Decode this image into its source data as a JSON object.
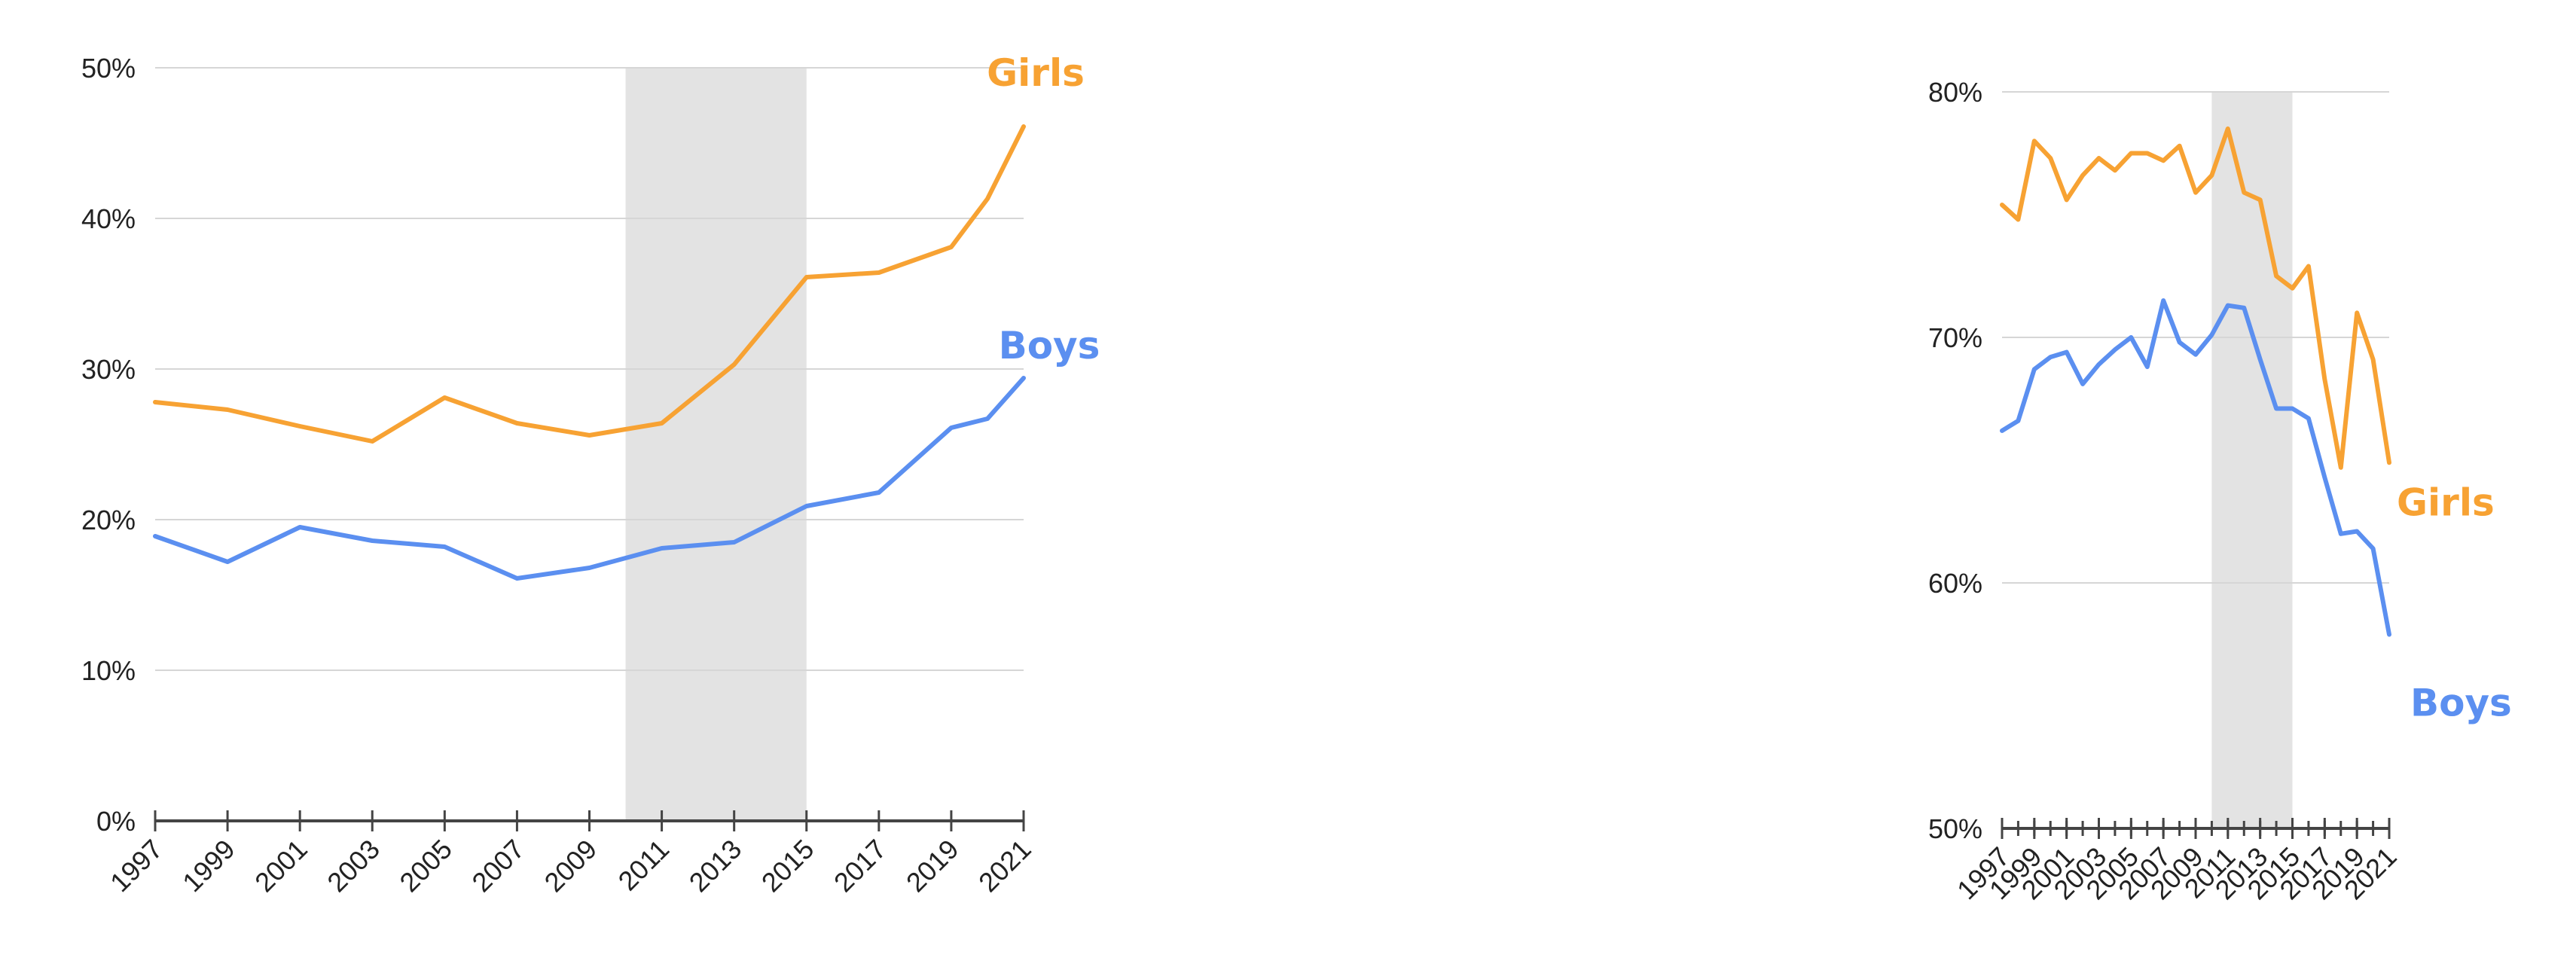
{
  "colors": {
    "girls": "#F7A233",
    "boys": "#5B8FF0",
    "shade": "#E3E3E3",
    "grid": "#D6D6D6",
    "axis": "#444444",
    "text": "#222222"
  },
  "chart_data": [
    {
      "type": "line",
      "title": "",
      "xlabel": "",
      "ylabel": "",
      "ylim": [
        0,
        50
      ],
      "yticks": [
        0,
        10,
        20,
        30,
        40,
        50
      ],
      "ytick_labels": [
        "0%",
        "10%",
        "20%",
        "30%",
        "40%",
        "50%"
      ],
      "xticks": [
        1997,
        1999,
        2001,
        2003,
        2005,
        2007,
        2009,
        2011,
        2013,
        2015,
        2017,
        2019,
        2021
      ],
      "xtick_labels": [
        "1997",
        "1999",
        "2001",
        "2003",
        "2005",
        "2007",
        "2009",
        "2011",
        "2013",
        "2015",
        "2017",
        "2019",
        "2021"
      ],
      "xlim": [
        1997,
        2021
      ],
      "grid": true,
      "shaded_region": [
        2010,
        2015
      ],
      "series": [
        {
          "name": "Girls",
          "color_key": "girls",
          "x": [
            1997,
            1999,
            2001,
            2003,
            2005,
            2007,
            2009,
            2011,
            2013,
            2015,
            2017,
            2019,
            2020,
            2021
          ],
          "y": [
            27.8,
            27.3,
            26.2,
            25.2,
            28.1,
            26.4,
            25.6,
            26.4,
            30.3,
            36.1,
            36.4,
            38.1,
            41.3,
            46.1
          ]
        },
        {
          "name": "Boys",
          "color_key": "boys",
          "x": [
            1997,
            1999,
            2001,
            2003,
            2005,
            2007,
            2009,
            2011,
            2013,
            2015,
            2017,
            2019,
            2020,
            2021
          ],
          "y": [
            18.9,
            17.2,
            19.5,
            18.6,
            18.2,
            16.1,
            16.8,
            18.1,
            18.5,
            20.9,
            21.8,
            26.1,
            26.7,
            29.4
          ]
        }
      ]
    },
    {
      "type": "line",
      "title": "",
      "xlabel": "",
      "ylabel": "",
      "ylim": [
        50,
        80
      ],
      "yticks": [
        50,
        60,
        70,
        80
      ],
      "ytick_labels": [
        "50%",
        "60%",
        "70%",
        "80%"
      ],
      "xticks": [
        1997,
        1999,
        2001,
        2003,
        2005,
        2007,
        2009,
        2011,
        2013,
        2015,
        2017,
        2019,
        2021
      ],
      "xtick_labels": [
        "1997",
        "1999",
        "2001",
        "2003",
        "2005",
        "2007",
        "2009",
        "2011",
        "2013",
        "2015",
        "2017",
        "2019",
        "2021"
      ],
      "xlim": [
        1997,
        2021
      ],
      "grid": true,
      "shaded_region": [
        2010,
        2015
      ],
      "series": [
        {
          "name": "Girls",
          "color_key": "girls",
          "x": [
            1997,
            1998,
            1999,
            2000,
            2001,
            2002,
            2003,
            2004,
            2005,
            2006,
            2007,
            2008,
            2009,
            2010,
            2011,
            2012,
            2013,
            2014,
            2015,
            2016,
            2017,
            2018,
            2019,
            2020,
            2021
          ],
          "y": [
            75.4,
            74.8,
            78.0,
            77.3,
            75.6,
            76.6,
            77.3,
            76.8,
            77.5,
            77.5,
            77.2,
            77.8,
            75.9,
            76.6,
            78.5,
            75.9,
            75.6,
            72.5,
            72.0,
            72.9,
            68.3,
            64.7,
            71.0,
            69.1,
            64.9
          ]
        },
        {
          "name": "Boys",
          "color_key": "boys",
          "x": [
            1997,
            1998,
            1999,
            2000,
            2001,
            2002,
            2003,
            2004,
            2005,
            2006,
            2007,
            2008,
            2009,
            2010,
            2011,
            2012,
            2013,
            2014,
            2015,
            2016,
            2017,
            2018,
            2019,
            2020,
            2021
          ],
          "y": [
            66.2,
            66.6,
            68.7,
            69.2,
            69.4,
            68.1,
            68.9,
            69.5,
            70.0,
            68.8,
            71.5,
            69.8,
            69.3,
            70.1,
            71.3,
            71.2,
            69.1,
            67.1,
            67.1,
            66.7,
            64.3,
            62.0,
            62.1,
            61.4,
            57.9
          ]
        }
      ]
    }
  ]
}
